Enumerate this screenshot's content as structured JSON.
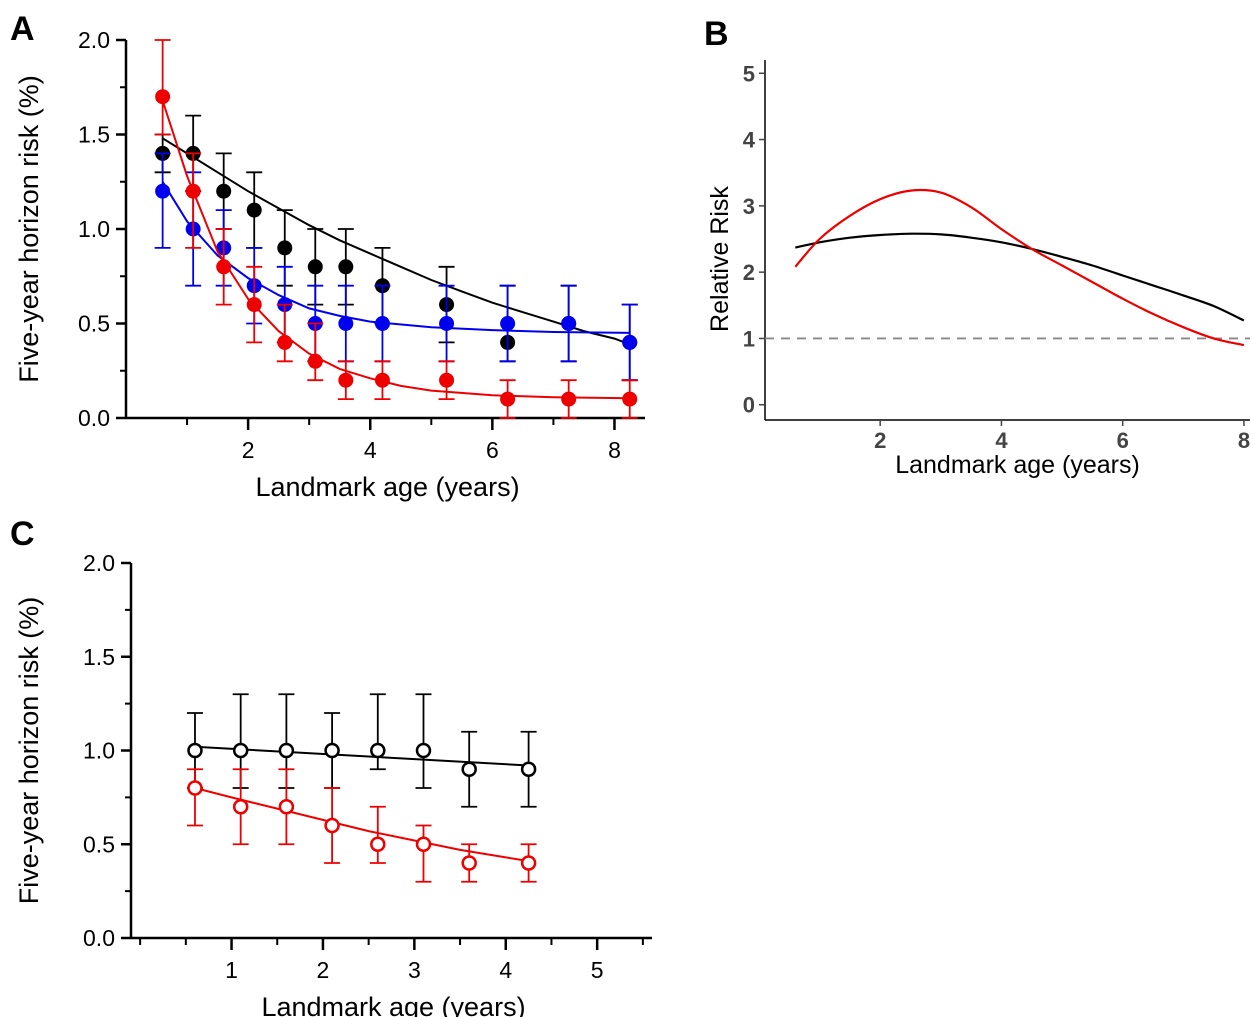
{
  "chart_data": [
    {
      "panel": "A",
      "type": "scatter",
      "xlabel": "Landmark age (years)",
      "ylabel": "Five-year horizon risk (%)",
      "xlim": [
        0,
        8.5
      ],
      "ylim": [
        0,
        2.0
      ],
      "xticks": [
        2,
        4,
        6,
        8
      ],
      "yticks": [
        0.0,
        0.5,
        1.0,
        1.5,
        2.0
      ],
      "ytick_labels": [
        "0.0",
        "0.5",
        "1.0",
        "1.5",
        "2.0"
      ],
      "series": [
        {
          "color": "#000000",
          "marker": "filled-circle",
          "fit": "exponential",
          "x": [
            0.6,
            1.1,
            1.6,
            2.1,
            2.6,
            3.1,
            3.6,
            4.2,
            5.25,
            6.25,
            7.25,
            8.25
          ],
          "y": [
            1.4,
            1.4,
            1.2,
            1.1,
            0.9,
            0.8,
            0.8,
            0.7,
            0.6,
            0.4,
            0.5,
            0.4
          ],
          "err_upper": [
            1.5,
            1.6,
            1.4,
            1.3,
            1.1,
            1.0,
            1.0,
            0.9,
            0.8,
            0.7,
            0.7,
            0.6
          ],
          "err_lower": [
            1.3,
            1.2,
            1.0,
            0.9,
            0.7,
            0.6,
            0.6,
            0.5,
            0.4,
            0.3,
            0.3,
            0.2
          ],
          "fit_x": [
            0.6,
            1.0,
            1.5,
            2.0,
            2.5,
            3.0,
            3.5,
            4.0,
            4.5,
            5.0,
            5.5,
            6.0,
            6.5,
            7.0,
            7.5,
            8.0,
            8.25
          ],
          "fit_y": [
            1.48,
            1.4,
            1.3,
            1.2,
            1.11,
            1.02,
            0.94,
            0.87,
            0.8,
            0.73,
            0.67,
            0.61,
            0.56,
            0.51,
            0.46,
            0.42,
            0.39
          ]
        },
        {
          "color": "#0000ee",
          "marker": "filled-circle",
          "fit": "exponential",
          "x": [
            0.6,
            1.1,
            1.6,
            2.1,
            2.6,
            3.1,
            3.6,
            4.2,
            5.25,
            6.25,
            7.25,
            8.25
          ],
          "y": [
            1.2,
            1.0,
            0.9,
            0.7,
            0.6,
            0.5,
            0.5,
            0.5,
            0.5,
            0.5,
            0.5,
            0.4
          ],
          "err_upper": [
            1.4,
            1.3,
            1.1,
            0.9,
            0.8,
            0.7,
            0.7,
            0.7,
            0.7,
            0.7,
            0.7,
            0.6
          ],
          "err_lower": [
            0.9,
            0.7,
            0.7,
            0.5,
            0.4,
            0.3,
            0.3,
            0.3,
            0.3,
            0.3,
            0.3,
            0.2
          ],
          "fit_x": [
            0.6,
            1.0,
            1.5,
            2.0,
            2.5,
            3.0,
            3.5,
            4.0,
            5.0,
            6.0,
            7.0,
            8.25
          ],
          "fit_y": [
            1.25,
            1.04,
            0.86,
            0.74,
            0.65,
            0.58,
            0.54,
            0.51,
            0.48,
            0.465,
            0.455,
            0.45
          ]
        },
        {
          "color": "#ee0000",
          "marker": "filled-circle",
          "fit": "exponential",
          "x": [
            0.6,
            1.1,
            1.6,
            2.1,
            2.6,
            3.1,
            3.6,
            4.2,
            5.25,
            6.25,
            7.25,
            8.25
          ],
          "y": [
            1.7,
            1.2,
            0.8,
            0.6,
            0.4,
            0.3,
            0.2,
            0.2,
            0.2,
            0.1,
            0.1,
            0.1
          ],
          "err_upper": [
            2.0,
            1.4,
            1.0,
            0.8,
            0.6,
            0.5,
            0.3,
            0.3,
            0.3,
            0.2,
            0.2,
            0.2
          ],
          "err_lower": [
            1.5,
            0.9,
            0.6,
            0.4,
            0.3,
            0.2,
            0.1,
            0.1,
            0.1,
            0.0,
            0.0,
            0.0
          ],
          "fit_x": [
            0.6,
            1.0,
            1.5,
            2.0,
            2.5,
            3.0,
            3.5,
            4.0,
            4.5,
            5.0,
            6.0,
            7.0,
            8.25
          ],
          "fit_y": [
            1.68,
            1.28,
            0.88,
            0.63,
            0.46,
            0.34,
            0.26,
            0.21,
            0.17,
            0.145,
            0.12,
            0.11,
            0.105
          ]
        }
      ]
    },
    {
      "panel": "B",
      "type": "line",
      "xlabel": "Landmark age (years)",
      "ylabel": "Relative Risk",
      "xlim": [
        0.1,
        8.1
      ],
      "ylim": [
        -0.2,
        5.2
      ],
      "xticks": [
        2,
        4,
        6,
        8
      ],
      "yticks": [
        0,
        1,
        2,
        3,
        4,
        5
      ],
      "reference_line": {
        "y": 1,
        "style": "dashed",
        "color": "#888888"
      },
      "series": [
        {
          "color": "#000000",
          "x": [
            0.6,
            1.0,
            1.5,
            2.0,
            2.5,
            3.0,
            3.5,
            4.0,
            4.5,
            5.0,
            5.5,
            6.0,
            6.5,
            7.0,
            7.5,
            8.0
          ],
          "y": [
            2.37,
            2.45,
            2.52,
            2.56,
            2.58,
            2.57,
            2.52,
            2.45,
            2.35,
            2.23,
            2.1,
            1.95,
            1.8,
            1.65,
            1.49,
            1.27
          ]
        },
        {
          "color": "#ee0000",
          "x": [
            0.6,
            1.0,
            1.5,
            2.0,
            2.5,
            3.0,
            3.5,
            4.0,
            4.5,
            5.0,
            5.5,
            6.0,
            6.5,
            7.0,
            7.5,
            8.0
          ],
          "y": [
            2.08,
            2.5,
            2.85,
            3.1,
            3.23,
            3.2,
            2.98,
            2.65,
            2.35,
            2.1,
            1.85,
            1.6,
            1.37,
            1.17,
            1.0,
            0.9
          ]
        }
      ]
    },
    {
      "panel": "C",
      "type": "scatter",
      "xlabel": "Landmark age (years)",
      "ylabel": "Five-year horizon risk (%)",
      "xlim": [
        -0.1,
        5.6
      ],
      "ylim": [
        0,
        2.0
      ],
      "xticks": [
        1,
        2,
        3,
        4,
        5
      ],
      "yticks": [
        0.0,
        0.5,
        1.0,
        1.5,
        2.0
      ],
      "ytick_labels": [
        "0.0",
        "0.5",
        "1.0",
        "1.5",
        "2.0"
      ],
      "series": [
        {
          "color": "#000000",
          "marker": "open-circle",
          "fit": "linear",
          "x": [
            0.6,
            1.1,
            1.6,
            2.1,
            2.6,
            3.1,
            3.6,
            4.25
          ],
          "y": [
            1.0,
            1.0,
            1.0,
            1.0,
            1.0,
            1.0,
            0.9,
            0.9
          ],
          "err_upper": [
            1.2,
            1.3,
            1.3,
            1.2,
            1.3,
            1.3,
            1.1,
            1.1
          ],
          "err_lower": [
            0.8,
            0.8,
            0.8,
            0.8,
            0.9,
            0.8,
            0.7,
            0.7
          ],
          "fit_x": [
            0.6,
            4.25
          ],
          "fit_y": [
            1.02,
            0.92
          ]
        },
        {
          "color": "#ee0000",
          "marker": "open-circle",
          "fit": "exponential",
          "x": [
            0.6,
            1.1,
            1.6,
            2.1,
            2.6,
            3.1,
            3.6,
            4.25
          ],
          "y": [
            0.8,
            0.7,
            0.7,
            0.6,
            0.5,
            0.5,
            0.4,
            0.4
          ],
          "err_upper": [
            0.9,
            0.9,
            0.9,
            0.8,
            0.7,
            0.6,
            0.5,
            0.5
          ],
          "err_lower": [
            0.6,
            0.5,
            0.5,
            0.4,
            0.4,
            0.3,
            0.3,
            0.3
          ],
          "fit_x": [
            0.6,
            1.0,
            1.5,
            2.0,
            2.5,
            3.0,
            3.5,
            4.0,
            4.25
          ],
          "fit_y": [
            0.8,
            0.75,
            0.69,
            0.63,
            0.57,
            0.52,
            0.47,
            0.43,
            0.41
          ]
        }
      ]
    }
  ]
}
